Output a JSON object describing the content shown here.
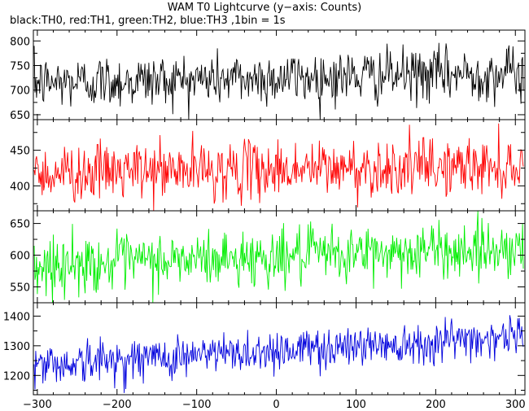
{
  "title": "WAM T0 Lightcurve (y−axis: Counts)",
  "subtitle": "black:TH0, red:TH1, green:TH2, blue:TH3 ,1bin = 1s",
  "chart_data": {
    "type": "line",
    "xlabel": "",
    "ylabel": "Counts",
    "xlim": [
      -305,
      312
    ],
    "xticks": [
      -300,
      -200,
      -100,
      0,
      100,
      200,
      300
    ],
    "bin_seconds": 1,
    "panels": [
      {
        "series_key": "TH0",
        "color": "#000000",
        "ylim": [
          640,
          822
        ],
        "yticks": [
          650,
          700,
          750,
          800
        ],
        "trend_start": 715,
        "trend_end": 735,
        "noise_sd": 27
      },
      {
        "series_key": "TH1",
        "color": "#ff0000",
        "ylim": [
          365,
          493
        ],
        "yticks": [
          400,
          450
        ],
        "trend_start": 418,
        "trend_end": 428,
        "noise_sd": 20
      },
      {
        "series_key": "TH2",
        "color": "#00ee00",
        "ylim": [
          525,
          670
        ],
        "yticks": [
          550,
          600,
          650
        ],
        "trend_start": 583,
        "trend_end": 612,
        "noise_sd": 22
      },
      {
        "series_key": "TH3",
        "color": "#0000dd",
        "ylim": [
          1135,
          1445
        ],
        "yticks": [
          1200,
          1300,
          1400
        ],
        "trend_start": 1235,
        "trend_end": 1335,
        "noise_sd": 36
      }
    ]
  }
}
